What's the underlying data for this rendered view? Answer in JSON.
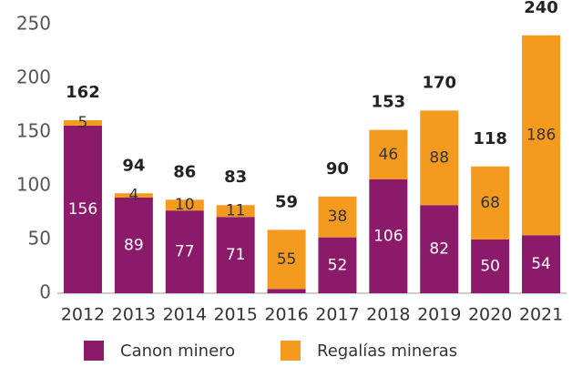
{
  "chart_data": {
    "type": "stacked_bar",
    "categories": [
      "2012",
      "2013",
      "2014",
      "2015",
      "2016",
      "2017",
      "2018",
      "2019",
      "2020",
      "2021"
    ],
    "series": [
      {
        "name": "Canon minero",
        "color": "#8b1a6b",
        "values": [
          156,
          89,
          77,
          71,
          4,
          52,
          106,
          82,
          50,
          54
        ]
      },
      {
        "name": "Regalías mineras",
        "color": "#f39a1f",
        "values": [
          5,
          4,
          10,
          11,
          55,
          38,
          46,
          88,
          68,
          186
        ]
      }
    ],
    "totals": [
      162,
      94,
      86,
      83,
      59,
      90,
      153,
      170,
      118,
      240
    ],
    "ylim": [
      0,
      250
    ],
    "yticks": [
      0,
      50,
      100,
      150,
      200,
      250
    ],
    "grid": false,
    "legend": "bottom"
  }
}
